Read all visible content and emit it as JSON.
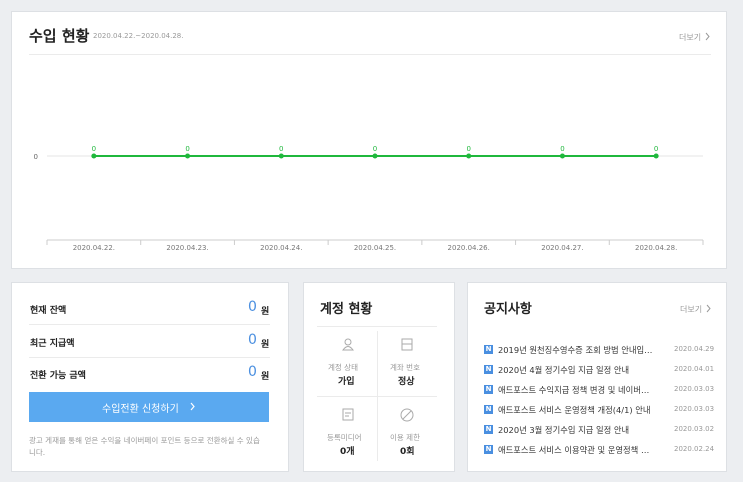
{
  "header": {
    "title": "수입 현황",
    "period": "2020.04.22.~2020.04.28.",
    "more": "더보기"
  },
  "chart_data": {
    "type": "line",
    "categories": [
      "2020.04.22.",
      "2020.04.23.",
      "2020.04.24.",
      "2020.04.25.",
      "2020.04.26.",
      "2020.04.27.",
      "2020.04.28."
    ],
    "values": [
      0,
      0,
      0,
      0,
      0,
      0,
      0
    ],
    "color": "#1fb83c",
    "ylim": [
      -1,
      1
    ],
    "yticks": [
      0
    ],
    "grid": true
  },
  "balance": {
    "rows": [
      {
        "label": "현재 잔액",
        "value": 0,
        "unit": "원"
      },
      {
        "label": "최근 지급액",
        "value": 0,
        "unit": "원"
      },
      {
        "label": "전환 가능 금액",
        "value": 0,
        "unit": "원"
      }
    ],
    "button": "수입전환 신청하기",
    "note": "광고 게재를 통해 얻은 수익을 네이버페이 포인트 등으로 전환하실 수 있습니다."
  },
  "account": {
    "title": "계정 현황",
    "cells": [
      {
        "label": "계정 상태",
        "value": "가입"
      },
      {
        "label": "계좌 번호",
        "value": "정상"
      },
      {
        "label": "등록미디어",
        "value": "0개"
      },
      {
        "label": "이용 제한",
        "value": "0회"
      }
    ]
  },
  "notices": {
    "title": "공지사항",
    "more": "더보기",
    "badge": "N",
    "items": [
      {
        "text": "2019년 원천징수영수증 조회 방법 안내입…",
        "date": "2020.04.29"
      },
      {
        "text": "2020년 4월 정기수입 지급 일정 안내",
        "date": "2020.04.01"
      },
      {
        "text": "애드포스트 수익지급 정책 변경 및 네이버…",
        "date": "2020.03.03"
      },
      {
        "text": "애드포스트 서비스 운영정책 개정(4/1) 안내",
        "date": "2020.03.03"
      },
      {
        "text": "2020년 3월 정기수입 지급 일정 안내",
        "date": "2020.03.02"
      },
      {
        "text": "애드포스트 서비스 이용약관 및 운영정책 …",
        "date": "2020.02.24"
      }
    ]
  }
}
